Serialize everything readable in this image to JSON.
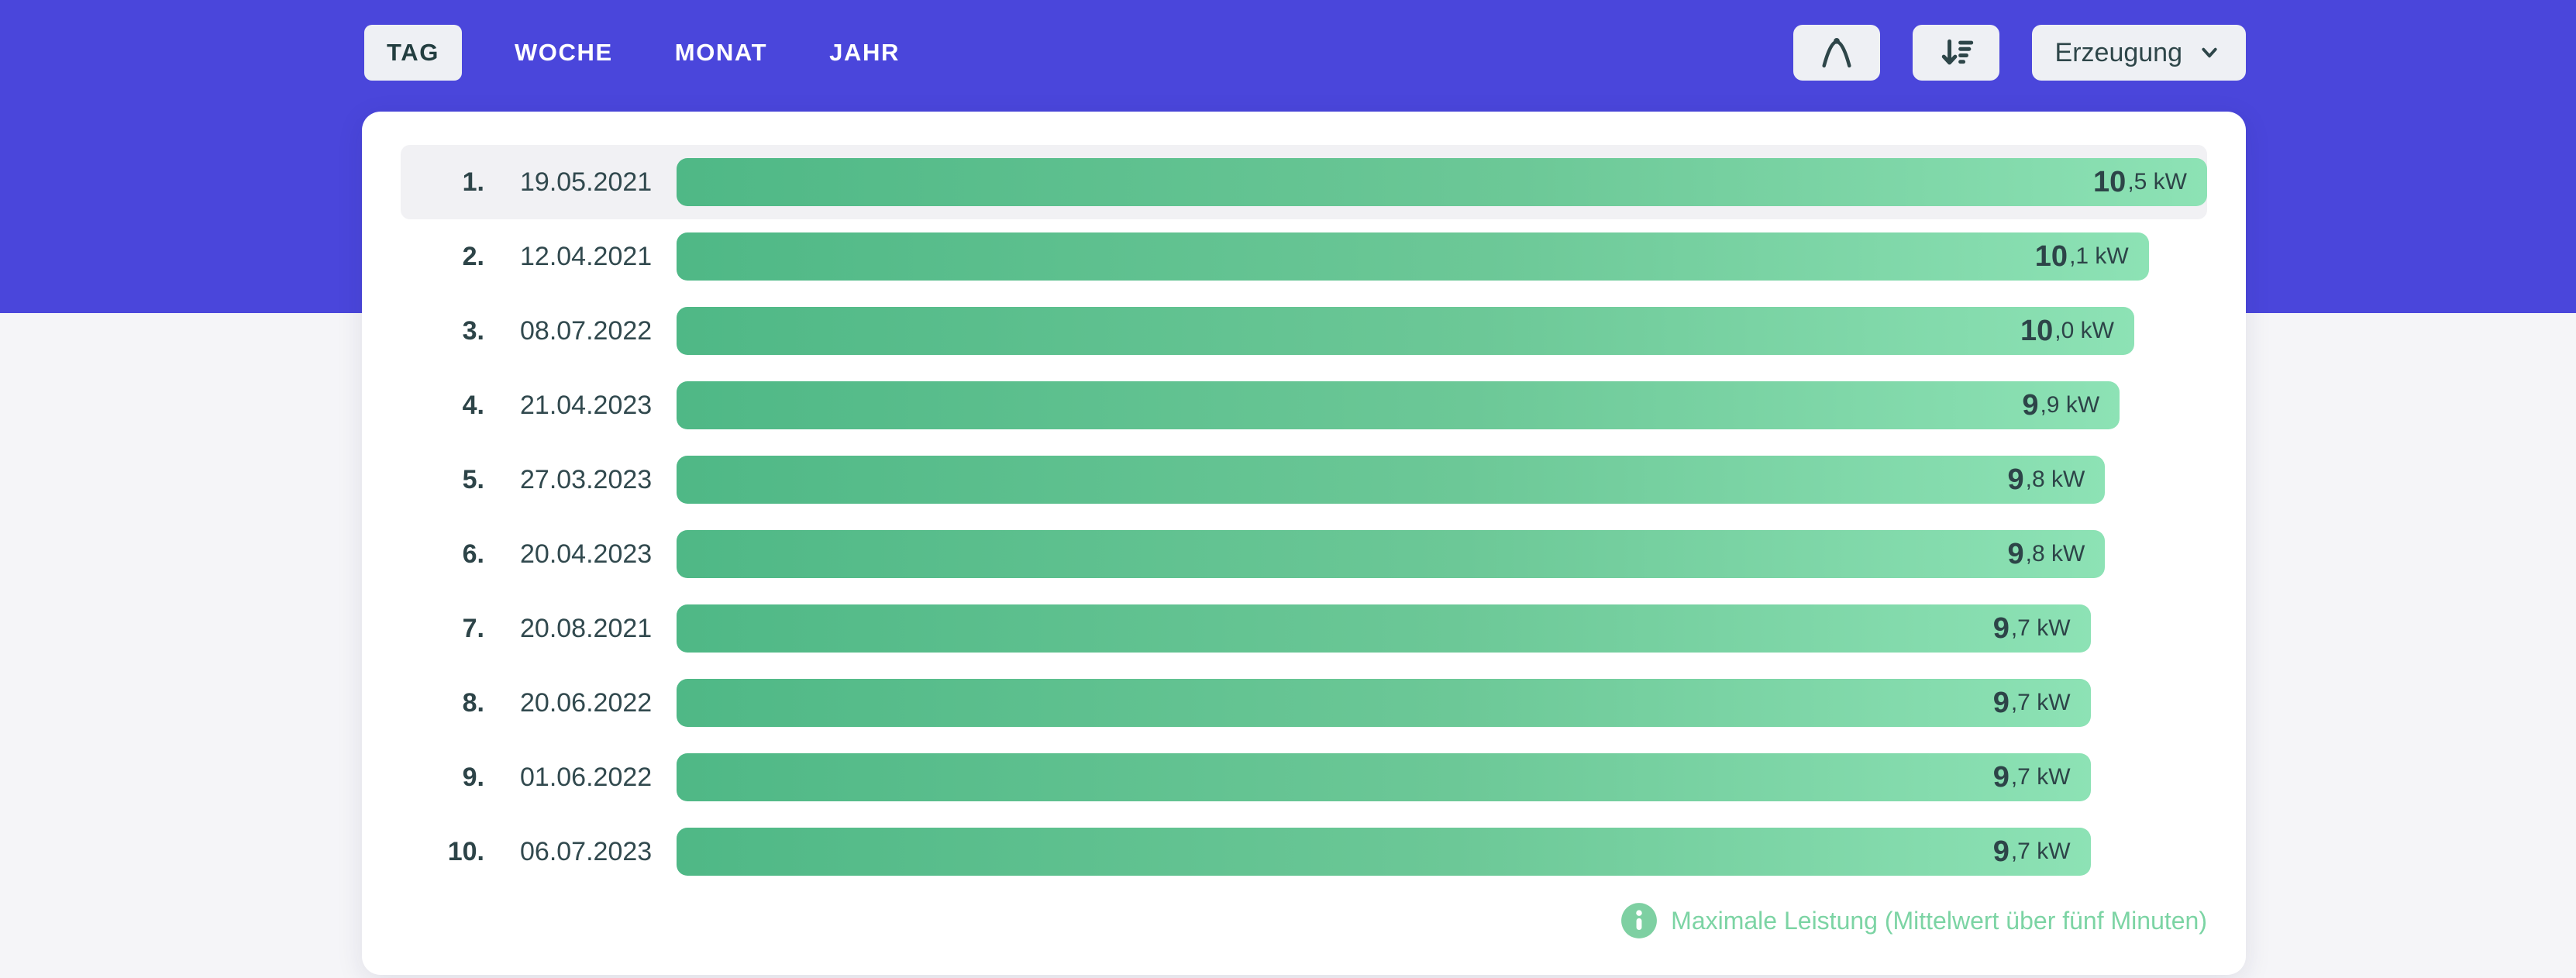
{
  "theme": {
    "header_purple": "#4A46DB",
    "page_background": "#F5F5F8",
    "card_background": "#FFFFFF",
    "row_highlight": "#F1F1F4",
    "bar_gradient_start": "#4FB886",
    "bar_gradient_end": "#8DE2B5",
    "text_dark": "#2D4448",
    "button_background": "#EEF0F4",
    "note_green": "#7CD4A4"
  },
  "tabs": [
    {
      "label": "TAG",
      "active": true
    },
    {
      "label": "WOCHE",
      "active": false
    },
    {
      "label": "MONAT",
      "active": false
    },
    {
      "label": "JAHR",
      "active": false
    }
  ],
  "toolbar": {
    "curve_button": {
      "icon": "bell-curve-icon"
    },
    "sort_button": {
      "icon": "sort-descending-icon"
    },
    "metric_dropdown": {
      "label": "Erzeugung",
      "icon": "chevron-down-icon"
    }
  },
  "ranking": {
    "max_value": 10.5,
    "unit": "kW",
    "rows": [
      {
        "rank": "1.",
        "date": "19.05.2021",
        "value": 10.5,
        "value_main": "10",
        "value_rest": ",5 kW",
        "highlighted": true
      },
      {
        "rank": "2.",
        "date": "12.04.2021",
        "value": 10.1,
        "value_main": "10",
        "value_rest": ",1 kW",
        "highlighted": false
      },
      {
        "rank": "3.",
        "date": "08.07.2022",
        "value": 10.0,
        "value_main": "10",
        "value_rest": ",0 kW",
        "highlighted": false
      },
      {
        "rank": "4.",
        "date": "21.04.2023",
        "value": 9.9,
        "value_main": "9",
        "value_rest": ",9 kW",
        "highlighted": false
      },
      {
        "rank": "5.",
        "date": "27.03.2023",
        "value": 9.8,
        "value_main": "9",
        "value_rest": ",8 kW",
        "highlighted": false
      },
      {
        "rank": "6.",
        "date": "20.04.2023",
        "value": 9.8,
        "value_main": "9",
        "value_rest": ",8 kW",
        "highlighted": false
      },
      {
        "rank": "7.",
        "date": "20.08.2021",
        "value": 9.7,
        "value_main": "9",
        "value_rest": ",7 kW",
        "highlighted": false
      },
      {
        "rank": "8.",
        "date": "20.06.2022",
        "value": 9.7,
        "value_main": "9",
        "value_rest": ",7 kW",
        "highlighted": false
      },
      {
        "rank": "9.",
        "date": "01.06.2022",
        "value": 9.7,
        "value_main": "9",
        "value_rest": ",7 kW",
        "highlighted": false
      },
      {
        "rank": "10.",
        "date": "06.07.2023",
        "value": 9.7,
        "value_main": "9",
        "value_rest": ",7 kW",
        "highlighted": false
      }
    ],
    "footnote": {
      "icon": "info-icon",
      "text": "Maximale Leistung (Mittelwert über fünf Minuten)"
    }
  },
  "chart_data": {
    "type": "bar",
    "orientation": "horizontal",
    "categories": [
      "19.05.2021",
      "12.04.2021",
      "08.07.2022",
      "21.04.2023",
      "27.03.2023",
      "20.04.2023",
      "20.08.2021",
      "20.06.2022",
      "01.06.2022",
      "06.07.2023"
    ],
    "ranks": [
      "1.",
      "2.",
      "3.",
      "4.",
      "5.",
      "6.",
      "7.",
      "8.",
      "9.",
      "10."
    ],
    "values": [
      10.5,
      10.1,
      10.0,
      9.9,
      9.8,
      9.8,
      9.7,
      9.7,
      9.7,
      9.7
    ],
    "value_labels": [
      "10,5 kW",
      "10,1 kW",
      "10,0 kW",
      "9,9 kW",
      "9,8 kW",
      "9,8 kW",
      "9,7 kW",
      "9,7 kW",
      "9,7 kW",
      "9,7 kW"
    ],
    "unit": "kW",
    "xlim": [
      0,
      10.5
    ],
    "title": "",
    "xlabel": "",
    "ylabel": "",
    "legend_position": "none",
    "grid": false,
    "note": "Maximale Leistung (Mittelwert über fünf Minuten)"
  }
}
